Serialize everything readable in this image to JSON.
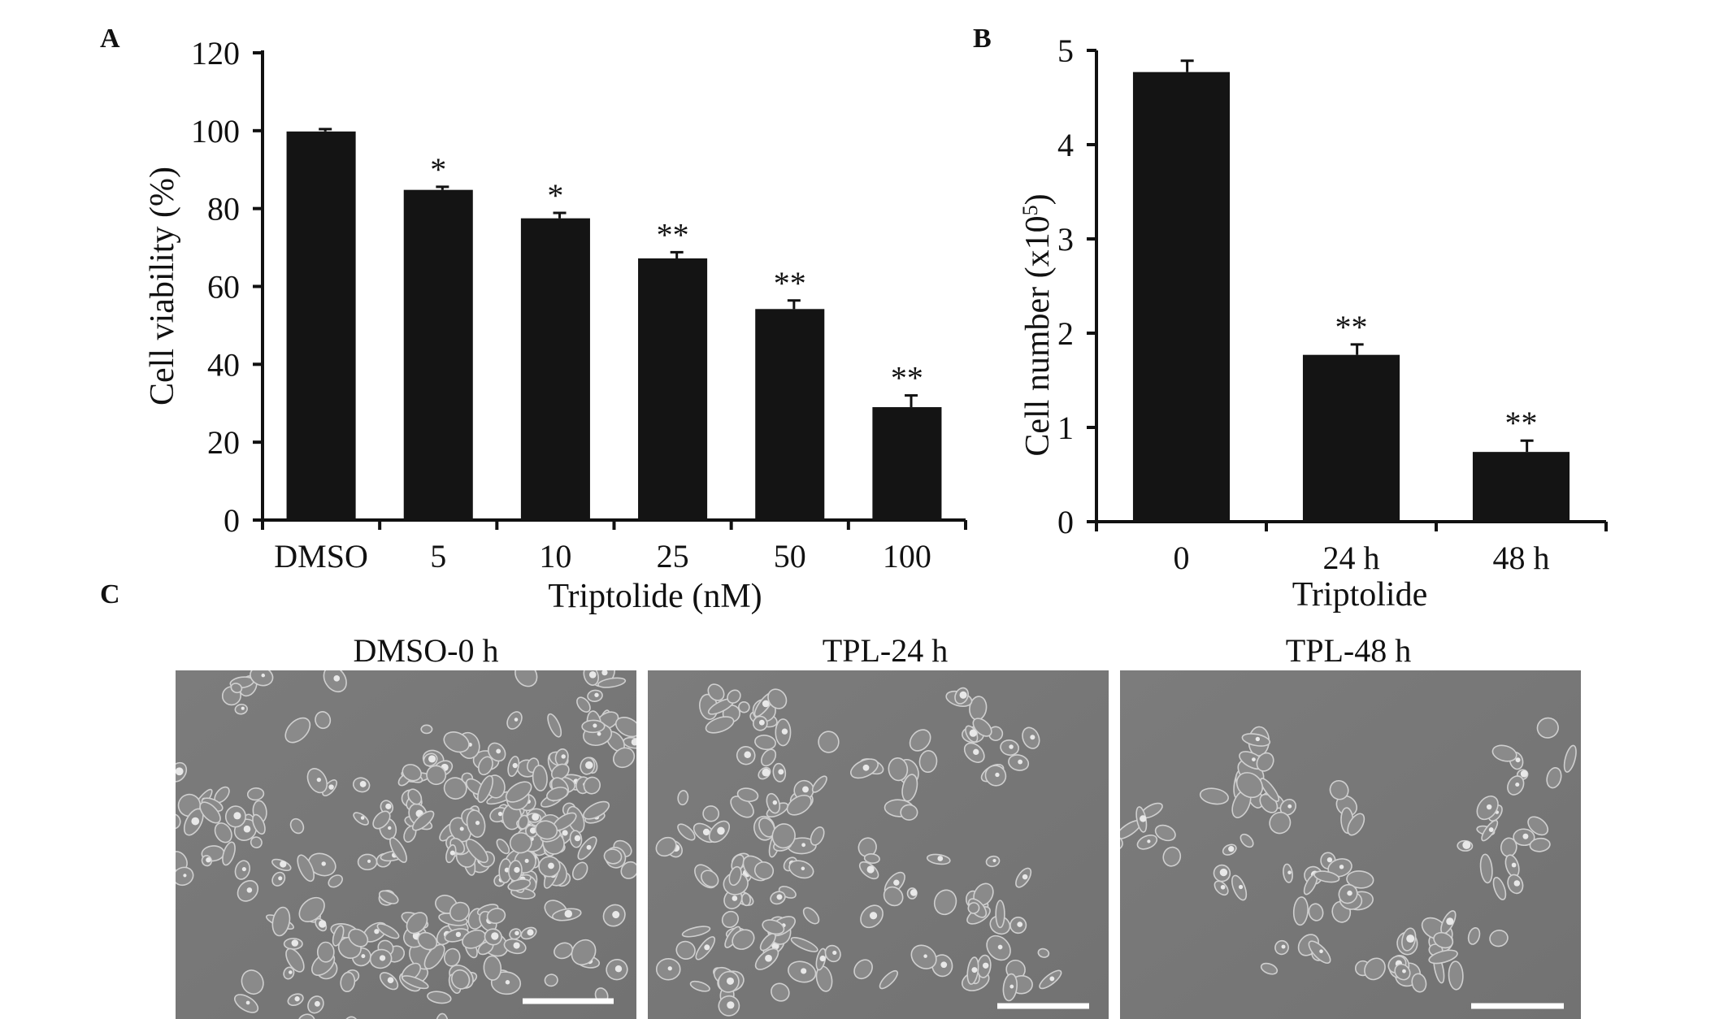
{
  "panels": {
    "a": "A",
    "b": "B",
    "c": "C"
  },
  "chart_data": [
    {
      "type": "bar",
      "panel": "A",
      "categories": [
        "DMSO",
        "5",
        "10",
        "25",
        "50",
        "100"
      ],
      "values": [
        99.8,
        84.8,
        77.5,
        67.2,
        54.2,
        29.0
      ],
      "errors": [
        0.6,
        0.8,
        1.4,
        1.6,
        2.2,
        3.0
      ],
      "significance": [
        "",
        "*",
        "*",
        "**",
        "**",
        "**"
      ],
      "xlabel": "Triptolide (nM)",
      "ylabel": "Cell viability  (%)",
      "ylim": [
        0,
        120
      ],
      "yticks": [
        0,
        20,
        40,
        60,
        80,
        100,
        120
      ],
      "color": "#141414",
      "grid": false
    },
    {
      "type": "bar",
      "panel": "B",
      "categories": [
        "0",
        "24 h",
        "48 h"
      ],
      "values": [
        4.77,
        1.77,
        0.74
      ],
      "errors": [
        0.12,
        0.11,
        0.12
      ],
      "significance": [
        "",
        "**",
        "**"
      ],
      "xlabel": "Triptolide",
      "ylabel_main": "Cell number  (x10",
      "ylabel_sup": "5",
      "ylabel_end": ")",
      "ylim": [
        0,
        5
      ],
      "yticks": [
        0,
        1,
        2,
        3,
        4,
        5
      ],
      "color": "#141414",
      "grid": false
    }
  ],
  "micrographs": [
    {
      "title": "DMSO-0 h",
      "density": 1.0
    },
    {
      "title": "TPL-24 h",
      "density": 0.55
    },
    {
      "title": "TPL-48 h",
      "density": 0.35
    }
  ],
  "colors": {
    "bar": "#141414",
    "axis": "#111111",
    "micrograph_bg": "#7a7a7a",
    "scale_bar": "#ffffff"
  }
}
